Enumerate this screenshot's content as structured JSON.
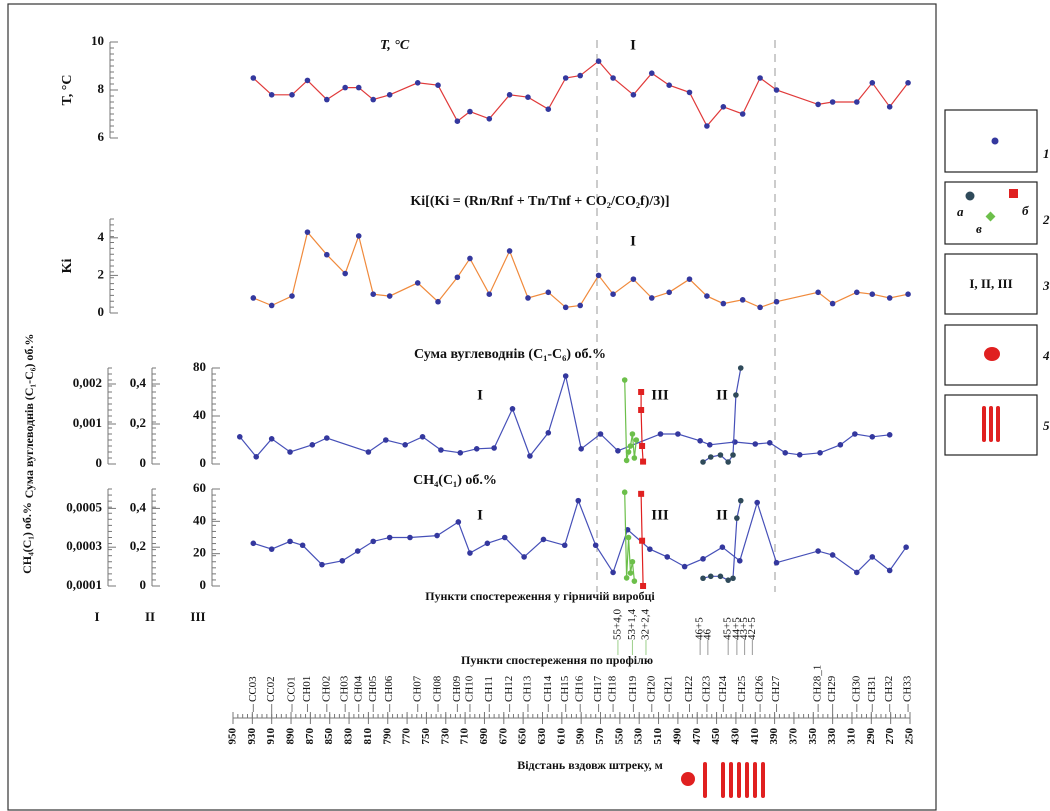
{
  "chart_data": [
    {
      "type": "line",
      "title": "T, °C",
      "y_label": "T, °C",
      "annotations": [
        "I"
      ],
      "ylim": [
        6,
        10
      ],
      "yticks": [
        6,
        8,
        10
      ],
      "series": [
        {
          "color": "#e03a3a",
          "marker_color": "#34389e",
          "x": [
            929,
            910,
            889,
            873,
            853,
            834,
            820,
            805,
            788,
            759,
            738,
            718,
            705,
            685,
            664,
            645,
            624,
            606,
            591,
            572,
            557,
            536,
            517,
            499,
            478,
            460,
            443,
            423,
            405,
            388,
            345,
            330,
            305,
            289,
            271,
            252
          ],
          "values": [
            8.5,
            7.8,
            7.8,
            8.4,
            7.6,
            8.1,
            8.1,
            7.6,
            7.8,
            8.3,
            8.2,
            6.7,
            7.1,
            6.8,
            7.8,
            7.7,
            7.2,
            8.5,
            8.6,
            9.2,
            8.5,
            7.8,
            8.7,
            8.2,
            7.9,
            6.5,
            7.3,
            7.0,
            8.5,
            8.0,
            7.4,
            7.5,
            7.5,
            8.3,
            7.3,
            8.3
          ]
        }
      ]
    },
    {
      "type": "line",
      "title": "Ki[(Ki = (Rn/Rnf + Tn/Tnf + CO₂/CO₂f)/3)]",
      "y_label": "Ki",
      "annotations": [
        "I"
      ],
      "ylim": [
        0,
        5
      ],
      "yticks": [
        0,
        2,
        4
      ],
      "series": [
        {
          "color": "#f08a3c",
          "marker_color": "#34389e",
          "x": [
            929,
            910,
            889,
            873,
            853,
            834,
            820,
            805,
            788,
            759,
            738,
            718,
            705,
            685,
            664,
            645,
            624,
            606,
            591,
            572,
            557,
            536,
            517,
            499,
            478,
            460,
            443,
            423,
            405,
            388,
            345,
            330,
            305,
            289,
            271,
            252
          ],
          "values": [
            0.8,
            0.4,
            0.9,
            4.3,
            3.1,
            2.1,
            4.1,
            1.0,
            0.9,
            1.6,
            0.6,
            1.9,
            2.9,
            1.0,
            3.3,
            0.8,
            1.1,
            0.3,
            0.4,
            2.0,
            1.0,
            1.8,
            0.8,
            1.1,
            1.8,
            0.9,
            0.5,
            0.7,
            0.3,
            0.6,
            1.1,
            0.5,
            1.1,
            1.0,
            0.8,
            1.0
          ]
        }
      ]
    },
    {
      "type": "line",
      "title": "Сума вуглеводнів (C₁-C₆) об.%",
      "y_label": "Сума вуглеводнів (C₁-C₆) об.%",
      "annotations": [
        "I",
        "III",
        "II"
      ],
      "ylim": [
        0,
        0.0024
      ],
      "yticks": [
        0,
        {
          "value": 0.001,
          "label": "0,001"
        },
        {
          "value": 0.002,
          "label": "0,002"
        }
      ],
      "y2lim": [
        0,
        0.48
      ],
      "y2ticks": [
        0,
        {
          "value": 0.2,
          "label": "0,2"
        },
        {
          "value": 0.4,
          "label": "0,4"
        }
      ],
      "y3lim": [
        0,
        80
      ],
      "y3ticks": [
        0,
        40,
        80
      ],
      "series": [
        {
          "color": "#4650b8",
          "marker_color": "#34389e",
          "axis": "y",
          "x": [
            943,
            926,
            910,
            891,
            868,
            853,
            810,
            792,
            772,
            754,
            735,
            715,
            698,
            680,
            661,
            643,
            624,
            606,
            590,
            570,
            552,
            508,
            490,
            467,
            457,
            431,
            410,
            395,
            379,
            364,
            343,
            322,
            307,
            289,
            271
          ],
          "values": [
            0.00068,
            0.00018,
            0.00063,
            0.0003,
            0.00048,
            0.00065,
            0.0003,
            0.0006,
            0.00048,
            0.00068,
            0.00035,
            0.00028,
            0.00038,
            0.0004,
            0.00138,
            0.0002,
            0.00078,
            0.0022,
            0.00038,
            0.00075,
            0.00033,
            0.00075,
            0.00075,
            0.00058,
            0.00048,
            0.00055,
            0.0005,
            0.00053,
            0.00028,
            0.00023,
            0.00028,
            0.00048,
            0.00075,
            0.00068,
            0.00073
          ]
        },
        {
          "color": "#4650b8",
          "marker_color": "#2f4a5a",
          "axis": "y2",
          "x": [
            464,
            456,
            446,
            438,
            433,
            430,
            425
          ],
          "values": [
            0.01,
            0.035,
            0.045,
            0.01,
            0.045,
            0.345,
            0.48
          ]
        },
        {
          "color": "#6cbf4a",
          "marker_color": "#6cbf4a",
          "axis": "y3",
          "x": [
            545,
            543,
            541,
            539,
            537,
            535,
            533
          ],
          "values": [
            70,
            3,
            10,
            15,
            25,
            5,
            20
          ]
        },
        {
          "color": "#e02020",
          "marker_color": "#e02020",
          "axis": "y3",
          "marker": "square",
          "x": [
            528,
            528,
            527,
            526
          ],
          "values": [
            60,
            45,
            15,
            2
          ]
        }
      ]
    },
    {
      "type": "line",
      "title": "CH₄(C₁) об.%",
      "y_label": "CH₄(C₁) об.%",
      "annotations": [
        "I",
        "III",
        "II"
      ],
      "ylim": [
        0.0001,
        0.0006
      ],
      "yticks": [
        {
          "value": 0.0001,
          "label": "0,0001"
        },
        {
          "value": 0.0003,
          "label": "0,0003"
        },
        {
          "value": 0.0005,
          "label": "0,0005"
        }
      ],
      "y2lim": [
        0,
        0.5
      ],
      "y2ticks": [
        0,
        {
          "value": 0.2,
          "label": "0,2"
        },
        {
          "value": 0.4,
          "label": "0,4"
        }
      ],
      "y3lim": [
        0,
        60
      ],
      "y3ticks": [
        0,
        20,
        40,
        60
      ],
      "series": [
        {
          "color": "#4650b8",
          "marker_color": "#34389e",
          "axis": "y",
          "x": [
            929,
            910,
            891,
            878,
            858,
            837,
            821,
            805,
            788,
            767,
            739,
            717,
            705,
            687,
            669,
            649,
            629,
            607,
            593,
            575,
            557,
            542,
            519,
            501,
            483,
            464,
            444,
            426,
            408,
            388,
            345,
            330,
            305,
            289,
            271,
            254
          ],
          "values": [
            0.00032,
            0.00029,
            0.00033,
            0.00031,
            0.00021,
            0.00023,
            0.00028,
            0.00033,
            0.00035,
            0.00035,
            0.00036,
            0.00043,
            0.00027,
            0.00032,
            0.00035,
            0.00025,
            0.00034,
            0.00031,
            0.00054,
            0.00031,
            0.00017,
            0.00039,
            0.00029,
            0.00025,
            0.0002,
            0.00024,
            0.0003,
            0.00023,
            0.00053,
            0.00022,
            0.00028,
            0.00026,
            0.00017,
            0.00025,
            0.00018,
            0.0003
          ]
        },
        {
          "color": "#4650b8",
          "marker_color": "#2f4a5a",
          "axis": "y2",
          "x": [
            464,
            456,
            446,
            438,
            433,
            429,
            425
          ],
          "values": [
            0.04,
            0.05,
            0.05,
            0.03,
            0.04,
            0.35,
            0.44
          ]
        },
        {
          "color": "#6cbf4a",
          "marker_color": "#6cbf4a",
          "axis": "y3",
          "x": [
            545,
            543,
            541,
            539,
            537,
            535
          ],
          "values": [
            58,
            5,
            30,
            8,
            15,
            3
          ]
        },
        {
          "color": "#e02020",
          "marker_color": "#e02020",
          "axis": "y3",
          "marker": "square",
          "x": [
            528,
            527,
            526
          ],
          "values": [
            57,
            28,
            0
          ]
        }
      ]
    }
  ],
  "axis_labels": [
    "I",
    "II",
    "III"
  ],
  "x_axis": {
    "title": "Відстань вздовж штреку, м",
    "xlim": [
      950,
      250
    ],
    "xticks": [
      950,
      930,
      910,
      890,
      870,
      850,
      830,
      810,
      790,
      770,
      750,
      730,
      710,
      690,
      670,
      650,
      630,
      610,
      590,
      570,
      550,
      530,
      510,
      490,
      470,
      450,
      430,
      410,
      390,
      370,
      350,
      330,
      310,
      290,
      270,
      250
    ]
  },
  "stations": {
    "title": "Пункти спостереження по профілю",
    "labels": [
      "CC03",
      "CC02",
      "CC01",
      "CH01",
      "CH02",
      "CH03",
      "CH04",
      "CH05",
      "CH06",
      "CH07",
      "CH08",
      "CH09",
      "CH10",
      "CH11",
      "CH12",
      "CH13",
      "CH14",
      "CH15",
      "CH16",
      "CH17",
      "CH18",
      "CH19",
      "CH20",
      "CH21",
      "CH22",
      "CH23",
      "CH24",
      "CH25",
      "CH26",
      "CH27",
      "CH28_1",
      "CH29",
      "CH30",
      "CH31",
      "CH32",
      "CH33"
    ],
    "x": [
      929,
      910,
      889,
      873,
      853,
      834,
      820,
      805,
      788,
      759,
      738,
      718,
      705,
      685,
      664,
      645,
      624,
      606,
      591,
      572,
      557,
      536,
      517,
      499,
      478,
      460,
      443,
      423,
      405,
      388,
      345,
      330,
      305,
      289,
      271,
      252
    ]
  },
  "mine_points": {
    "title": "Пункти спостереження у гірничій виробці",
    "labels": [
      "55+4,0",
      "53+1,4",
      "32+2,4",
      "46+5",
      "46",
      "45+5",
      "44+5",
      "43+5",
      "42+5"
    ],
    "x": [
      552,
      537,
      523,
      467,
      459,
      438,
      429,
      421,
      413
    ]
  },
  "legend": [
    {
      "label": "1"
    },
    {
      "label": "2",
      "marks": [
        "а",
        "б",
        "в"
      ]
    },
    {
      "label": "3",
      "text": "I, II, III"
    },
    {
      "label": "4"
    },
    {
      "label": "5"
    }
  ]
}
